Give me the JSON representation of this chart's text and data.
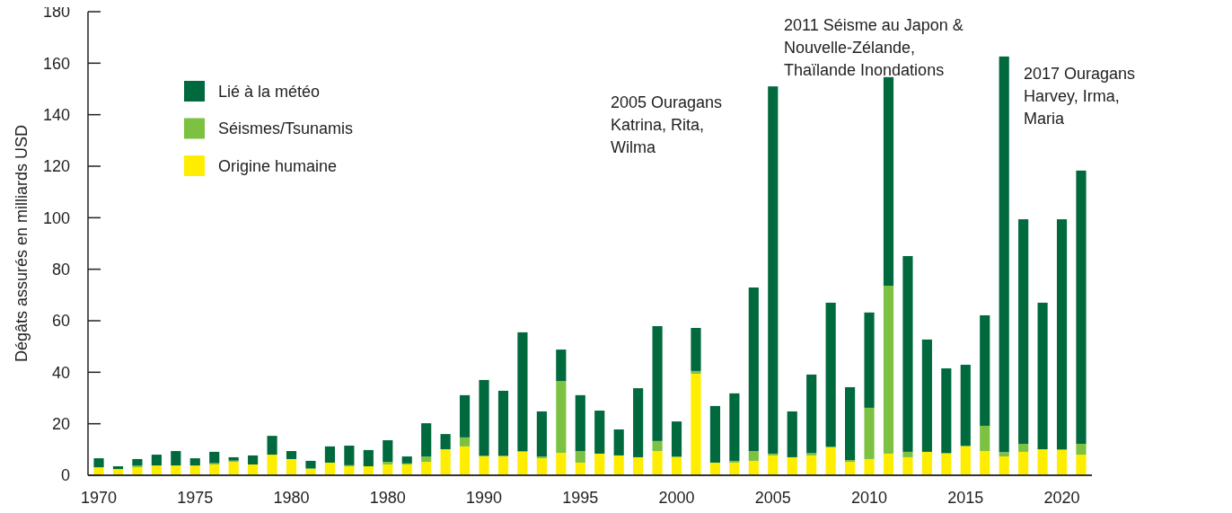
{
  "chart_data": {
    "type": "bar",
    "stacked": true,
    "ylabel": "Dégâts assurés en milliards USD",
    "categories": [
      "1970",
      null,
      null,
      null,
      null,
      "1975",
      null,
      null,
      null,
      null,
      "1980",
      null,
      null,
      null,
      null,
      "1980",
      null,
      null,
      null,
      null,
      "1990",
      null,
      null,
      null,
      null,
      "1995",
      null,
      null,
      null,
      null,
      "2000",
      null,
      null,
      null,
      null,
      "2005",
      null,
      null,
      null,
      null,
      "2010",
      null,
      null,
      null,
      null,
      "2015",
      null,
      null,
      null,
      null,
      "2020",
      null
    ],
    "series": [
      {
        "name": "Origine humaine",
        "color": "#ffed00",
        "values": [
          3.1,
          2.4,
          3.1,
          3.8,
          3.8,
          3.8,
          4.2,
          5.2,
          4.2,
          8.0,
          6.3,
          2.4,
          4.9,
          3.5,
          3.5,
          4.2,
          4.2,
          5.2,
          10.1,
          11.2,
          7.3,
          7.3,
          9.1,
          6.6,
          8.7,
          4.9,
          8.4,
          7.7,
          7.0,
          9.4,
          7.0,
          39.4,
          4.9,
          4.9,
          5.6,
          7.7,
          7.0,
          7.7,
          10.8,
          5.2,
          6.3,
          8.4,
          7.0,
          9.1,
          8.4,
          11.2,
          9.4,
          7.3,
          9.1,
          10.1,
          9.8,
          8.0
        ]
      },
      {
        "name": "Séismes/Tsunamis",
        "color": "#7dc142",
        "values": [
          0,
          0,
          0.7,
          0,
          0,
          0,
          0.5,
          0.5,
          0,
          0,
          0,
          0.3,
          0,
          0.4,
          0,
          1.0,
          0.4,
          2.1,
          0,
          3.5,
          0.3,
          0.3,
          0.3,
          0.7,
          27.9,
          4.5,
          0,
          0,
          0,
          3.9,
          0.3,
          1.1,
          0,
          0.7,
          3.8,
          0.7,
          0,
          0.9,
          0.3,
          0.7,
          19.9,
          65.2,
          2.1,
          0,
          0.3,
          0.3,
          9.8,
          1.7,
          3.1,
          0,
          0.3,
          4.2
        ]
      },
      {
        "name": "Lié à la météo",
        "color": "#00693e",
        "values": [
          3.5,
          1.1,
          2.5,
          4.2,
          5.6,
          2.8,
          4.4,
          1.3,
          3.5,
          7.3,
          3.1,
          2.9,
          6.3,
          7.6,
          6.3,
          8.4,
          2.7,
          12.9,
          5.9,
          16.4,
          29.4,
          25.2,
          46.1,
          17.5,
          12.2,
          21.7,
          16.7,
          10.1,
          26.8,
          44.6,
          13.6,
          16.7,
          22.0,
          26.2,
          63.5,
          142.6,
          17.8,
          30.5,
          55.9,
          28.3,
          37.0,
          81.0,
          76.0,
          43.6,
          32.8,
          31.4,
          42.9,
          153.6,
          87.2,
          56.9,
          89.3,
          106.1
        ]
      }
    ],
    "ylim": [
      0,
      180
    ],
    "yticks": [
      0,
      20,
      40,
      60,
      80,
      100,
      120,
      140,
      160,
      180
    ],
    "grid": false,
    "legend": "top left",
    "annotations": [
      "2005 Ouragans\nKatrina, Rita,\nWilma",
      "2011 Séisme au Japon &\nNouvelle-Zélande,\nThaïlande Inondations",
      "2017 Ouragans\nHarvey, Irma,\nMaria"
    ]
  }
}
